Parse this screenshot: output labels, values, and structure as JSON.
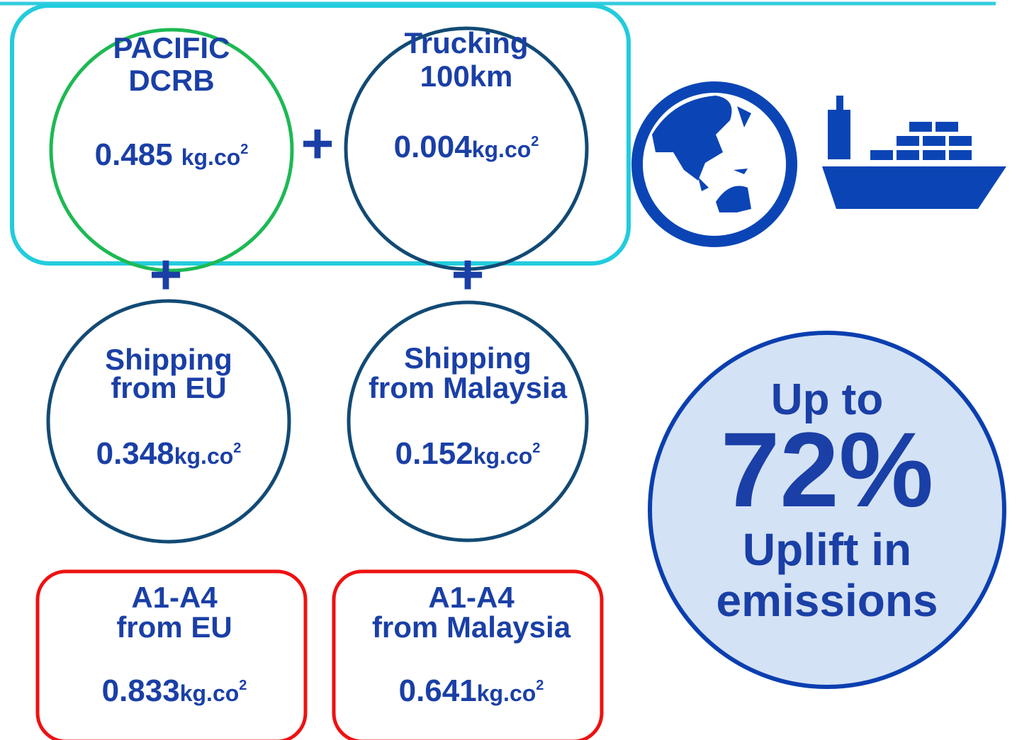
{
  "nodes": [
    {
      "lines": [
        "PACIFIC",
        "DCRB"
      ],
      "value": "0.485",
      "unit": "kg.co",
      "sup": "2"
    },
    {
      "lines": [
        "Trucking",
        "100km"
      ],
      "value": "0.004",
      "unit": "kg.co",
      "sup": "2"
    },
    {
      "lines": [
        "Shipping",
        "from EU"
      ],
      "value": "0.348",
      "unit": "kg.co",
      "sup": "2"
    },
    {
      "lines": [
        "Shipping",
        "from Malaysia"
      ],
      "value": "0.152",
      "unit": "kg.co",
      "sup": "2"
    },
    {
      "lines": [
        "A1-A4",
        "from EU"
      ],
      "value": "0.833",
      "unit": "kg.co",
      "sup": "2"
    },
    {
      "lines": [
        "A1-A4",
        "from Malaysia"
      ],
      "value": "0.641",
      "unit": "kg.co",
      "sup": "2"
    }
  ],
  "operators": [
    "+",
    "+",
    "+"
  ],
  "callout": {
    "lines": [
      "Up to",
      "72%",
      "Uplift in",
      "emissions"
    ]
  }
}
